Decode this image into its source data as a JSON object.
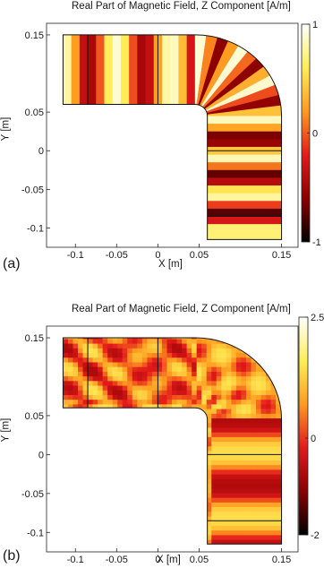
{
  "chart_data": [
    {
      "type": "heatmap",
      "panel_label": "(a)",
      "title": "Real Part of Magnetic Field, Z Component [A/m]",
      "xlabel": "X [m]",
      "ylabel": "Y [m]",
      "xlim": [
        -0.135,
        0.17
      ],
      "ylim": [
        -0.125,
        0.165
      ],
      "x_ticks": [
        -0.1,
        -0.05,
        0,
        0.05,
        0.15
      ],
      "x_tick_labels": [
        "-0.1",
        "-0.05",
        "0",
        "0.05",
        "0.15"
      ],
      "y_ticks": [
        0.15,
        0.05,
        0,
        -0.05,
        -0.1
      ],
      "y_tick_labels": [
        "0.15",
        "0.05",
        "0",
        "-0.05",
        "-0.1"
      ],
      "colorbar": {
        "min": -1,
        "max": 1,
        "ticks": [
          1,
          0,
          -1
        ],
        "tick_labels": [
          "1",
          "0",
          "-1"
        ],
        "colormap": [
          "#000000",
          "#8c0000",
          "#e31a1c",
          "#ff9a1f",
          "#ffee55",
          "#ffffff"
        ]
      },
      "field_pattern": "regular standing-wave stripes across the guide",
      "grid": false
    },
    {
      "type": "heatmap",
      "panel_label": "(b)",
      "title": "Real Part of Magnetic Field, Z Component [A/m]",
      "xlabel": "X [m]",
      "ylabel": "Y [m]",
      "xlim": [
        -0.135,
        0.17
      ],
      "ylim": [
        -0.125,
        0.165
      ],
      "x_ticks": [
        -0.1,
        -0.05,
        0,
        0.05,
        0.15
      ],
      "x_tick_labels": [
        "-0.1",
        "-0.05",
        "0",
        "0.05",
        "0.15"
      ],
      "y_ticks": [
        0.15,
        0.05,
        0,
        -0.05,
        -0.1
      ],
      "y_tick_labels": [
        "0.15",
        "0.05",
        "0",
        "-0.05",
        "-0.1"
      ],
      "colorbar": {
        "min": -2,
        "max": 2.5,
        "ticks": [
          2.5,
          0,
          -2
        ],
        "tick_labels": [
          "2.5",
          "0",
          "-2"
        ],
        "colormap": [
          "#000000",
          "#8c0000",
          "#e31a1c",
          "#ff9a1f",
          "#ffee55",
          "#ffffff"
        ]
      },
      "field_pattern": "irregular multi-mode interference pattern",
      "grid": false
    }
  ]
}
